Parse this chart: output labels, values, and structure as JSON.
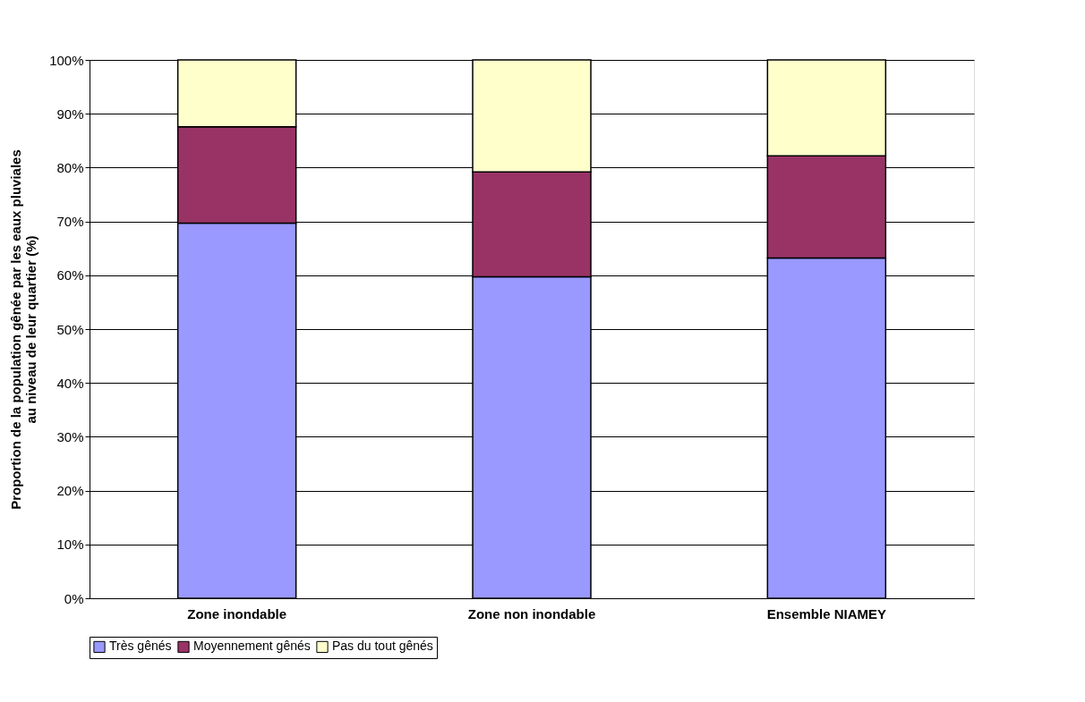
{
  "chart_data": {
    "type": "bar",
    "stacked": true,
    "ylabel": "Proportion de la population gênée par les eaux pluviales au niveau de leur quartier (%)",
    "categories": [
      "Zone inondable",
      "Zone non inondable",
      "Ensemble NIAMEY"
    ],
    "series": [
      {
        "name": "Très gênés",
        "color": "#9999ff",
        "values": [
          69.7,
          59.7,
          63.2
        ]
      },
      {
        "name": "Moyennement gênés",
        "color": "#993366",
        "values": [
          17.9,
          19.5,
          19.0
        ]
      },
      {
        "name": "Pas du tout gênés",
        "color": "#ffffcc",
        "values": [
          12.4,
          20.8,
          17.8
        ]
      }
    ],
    "ylim": [
      0,
      100
    ],
    "yticks": [
      {
        "value": 0,
        "label": "0%"
      },
      {
        "value": 10,
        "label": "10%"
      },
      {
        "value": 20,
        "label": "20%"
      },
      {
        "value": 30,
        "label": "30%"
      },
      {
        "value": 40,
        "label": "40%"
      },
      {
        "value": 50,
        "label": "50%"
      },
      {
        "value": 60,
        "label": "60%"
      },
      {
        "value": 70,
        "label": "70%"
      },
      {
        "value": 80,
        "label": "80%"
      },
      {
        "value": 90,
        "label": "90%"
      },
      {
        "value": 100,
        "label": "100%"
      }
    ],
    "grid": "y",
    "legend": "bottom"
  }
}
